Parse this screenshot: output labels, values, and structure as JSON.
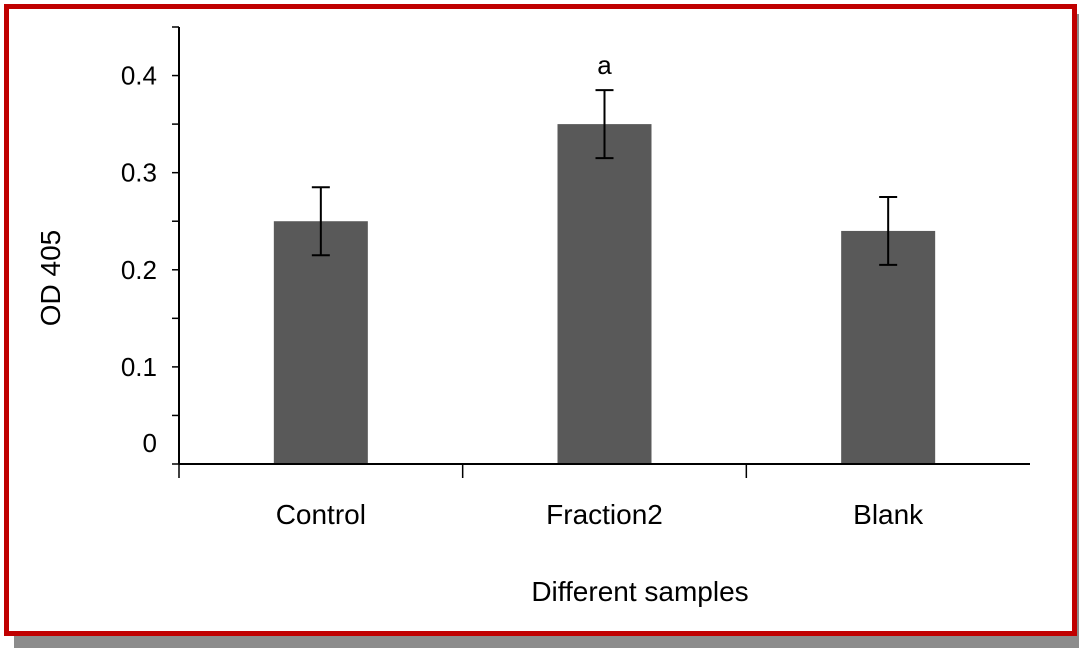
{
  "colors": {
    "frame_border": "#c00000",
    "frame_shadow": "#8c8c8c",
    "bar_fill": "#595959"
  },
  "chart_data": {
    "type": "bar",
    "categories": [
      "Control",
      "Fraction2",
      "Blank"
    ],
    "values": [
      0.25,
      0.35,
      0.24
    ],
    "errors": [
      0.035,
      0.035,
      0.035
    ],
    "annotations": [
      {
        "category": "Fraction2",
        "text": "a"
      }
    ],
    "title": "",
    "xlabel": "Different samples",
    "ylabel": "OD 405",
    "ylim": [
      0,
      0.45
    ],
    "yticks": [
      0,
      0.1,
      0.2,
      0.3,
      0.4
    ],
    "ytick_labels": [
      "0",
      "0.1",
      "0.2",
      "0.3",
      "0.4"
    ],
    "minor_ytick_step": 0.05,
    "grid": false,
    "legend": "none"
  }
}
